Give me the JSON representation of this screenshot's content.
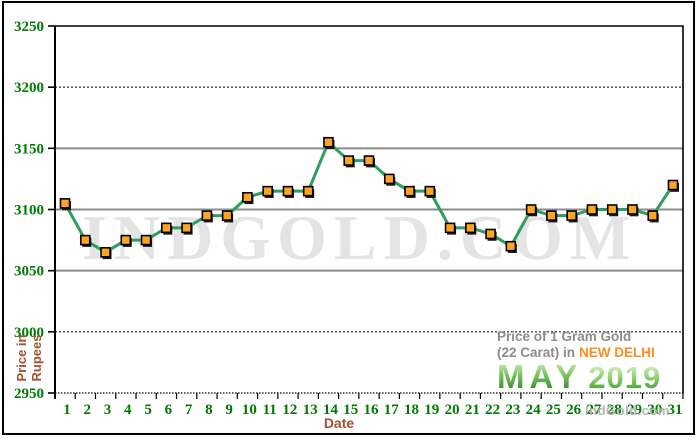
{
  "watermark": "INDGOLD.COM",
  "branding": "IndGold.com",
  "title": {
    "line1": "Price of 1 Gram Gold",
    "line2_prefix": "(22 Carat) in",
    "line2_city": "NEW DELHI",
    "month": "MAY",
    "year": "2019"
  },
  "axes": {
    "x_label": "Date",
    "y_label": "Price in Rupees"
  },
  "colors": {
    "line_green": "#2e9e5c",
    "marker_orange": "#ffa51e",
    "marker_border": "#000000",
    "marker_shadow": "#1a1a1a",
    "tick_label_green": "#007a00",
    "axis_black": "#000000",
    "grid_gray": "#8c8c8c",
    "label_brown": "#a0522d",
    "title_gray": "#8c8c8c",
    "city_orange": "#ff8c1a",
    "month_green": "#2f8f2f"
  },
  "chart_data": {
    "type": "line",
    "title": "Price of 1 Gram Gold (22 Carat) in NEW DELHI - MAY 2019",
    "xlabel": "Date",
    "ylabel": "Price in Rupees",
    "x": [
      1,
      2,
      3,
      4,
      5,
      6,
      7,
      8,
      9,
      10,
      11,
      12,
      13,
      14,
      15,
      16,
      17,
      18,
      19,
      20,
      21,
      22,
      23,
      24,
      25,
      26,
      27,
      28,
      29,
      30,
      31
    ],
    "values": [
      3105,
      3075,
      3065,
      3075,
      3075,
      3085,
      3085,
      3095,
      3095,
      3110,
      3115,
      3115,
      3115,
      3155,
      3140,
      3140,
      3125,
      3115,
      3115,
      3085,
      3085,
      3080,
      3070,
      3100,
      3095,
      3095,
      3100,
      3100,
      3100,
      3095,
      3120
    ],
    "ylim": [
      2950,
      3250
    ],
    "y_ticks": [
      3250,
      3200,
      3150,
      3100,
      3050,
      3000,
      2950
    ],
    "solid_gridlines": [
      3150,
      3100,
      3050
    ],
    "dotted_gridlines": [
      3200,
      3000
    ],
    "grid": true,
    "legend_position": "none"
  }
}
